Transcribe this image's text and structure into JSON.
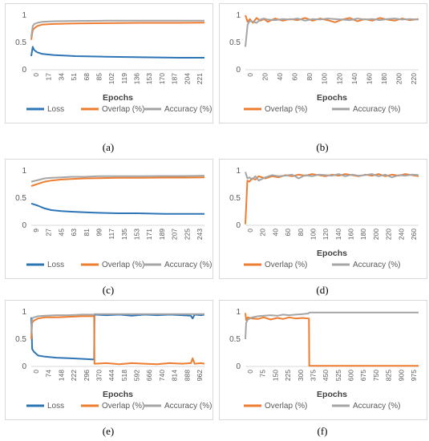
{
  "captions": [
    "(a)",
    "(b)",
    "(c)",
    "(d)",
    "(e)",
    "(f)"
  ],
  "colors": {
    "loss": "#2E75B6",
    "overlap": "#ED7D31",
    "accuracy": "#A5A5A5"
  },
  "chart_data": [
    {
      "type": "line",
      "panel": "a",
      "xlabel": "Epochs",
      "ylim": [
        0,
        1
      ],
      "yticks": [
        "0",
        "0.5",
        "1"
      ],
      "xticks": [
        "0",
        "17",
        "34",
        "51",
        "68",
        "85",
        "102",
        "119",
        "136",
        "153",
        "170",
        "187",
        "204",
        "221"
      ],
      "xmax": 235,
      "legend": [
        "Loss",
        "Overlap (%)",
        "Accuracy (%)"
      ],
      "series": [
        {
          "name": "Loss",
          "x": [
            0,
            2,
            4,
            8,
            15,
            30,
            60,
            100,
            150,
            200,
            235
          ],
          "values": [
            0.25,
            0.42,
            0.36,
            0.32,
            0.29,
            0.27,
            0.25,
            0.24,
            0.23,
            0.22,
            0.22
          ]
        },
        {
          "name": "Overlap (%)",
          "x": [
            0,
            2,
            4,
            8,
            15,
            30,
            60,
            100,
            150,
            200,
            235
          ],
          "values": [
            0.55,
            0.72,
            0.76,
            0.8,
            0.83,
            0.84,
            0.85,
            0.855,
            0.86,
            0.86,
            0.865
          ]
        },
        {
          "name": "Accuracy (%)",
          "x": [
            0,
            2,
            4,
            8,
            15,
            30,
            60,
            100,
            150,
            200,
            235
          ],
          "values": [
            0.6,
            0.8,
            0.84,
            0.86,
            0.88,
            0.89,
            0.895,
            0.9,
            0.9,
            0.9,
            0.9
          ]
        }
      ]
    },
    {
      "type": "line",
      "panel": "b",
      "xlabel": "Epochs",
      "ylim": [
        0,
        1
      ],
      "yticks": [
        "0",
        "0.5",
        "1"
      ],
      "xticks": [
        "0",
        "20",
        "40",
        "60",
        "80",
        "100",
        "120",
        "140",
        "160",
        "180",
        "200",
        "220"
      ],
      "xmax": 232,
      "legend": [
        "Overlap (%)",
        "Accuracy (%)"
      ],
      "series": [
        {
          "name": "Overlap (%)",
          "x": [
            0,
            3,
            6,
            10,
            15,
            20,
            25,
            30,
            40,
            50,
            60,
            70,
            80,
            90,
            100,
            110,
            120,
            130,
            140,
            150,
            160,
            170,
            180,
            190,
            200,
            210,
            220,
            232
          ],
          "values": [
            1,
            0.88,
            0.93,
            0.86,
            0.95,
            0.9,
            0.93,
            0.88,
            0.94,
            0.9,
            0.93,
            0.91,
            0.95,
            0.9,
            0.94,
            0.91,
            0.87,
            0.92,
            0.95,
            0.89,
            0.93,
            0.9,
            0.95,
            0.92,
            0.9,
            0.94,
            0.91,
            0.93
          ]
        },
        {
          "name": "Accuracy (%)",
          "x": [
            0,
            3,
            6,
            10,
            15,
            20,
            25,
            30,
            40,
            50,
            60,
            70,
            80,
            90,
            100,
            110,
            120,
            130,
            140,
            150,
            160,
            170,
            180,
            190,
            200,
            210,
            220,
            232
          ],
          "values": [
            0.42,
            0.83,
            0.9,
            0.88,
            0.86,
            0.92,
            0.94,
            0.92,
            0.91,
            0.93,
            0.92,
            0.94,
            0.9,
            0.93,
            0.92,
            0.94,
            0.93,
            0.92,
            0.91,
            0.94,
            0.92,
            0.93,
            0.91,
            0.93,
            0.94,
            0.92,
            0.93,
            0.92
          ]
        }
      ]
    },
    {
      "type": "line",
      "panel": "c",
      "xlabel": "",
      "ylim": [
        0,
        1
      ],
      "yticks": [
        "0",
        "0.5",
        "1"
      ],
      "xticks": [
        "9",
        "27",
        "45",
        "63",
        "81",
        "99",
        "117",
        "135",
        "153",
        "171",
        "189",
        "207",
        "225",
        "243"
      ],
      "xmin": 0,
      "xmax": 260,
      "legend": [
        "Loss",
        "Overlap (%)",
        "Accuracy (%)"
      ],
      "series": [
        {
          "name": "Loss",
          "x": [
            0,
            10,
            20,
            30,
            45,
            60,
            80,
            100,
            130,
            160,
            200,
            230,
            260
          ],
          "values": [
            0.4,
            0.36,
            0.31,
            0.28,
            0.26,
            0.25,
            0.24,
            0.23,
            0.22,
            0.22,
            0.21,
            0.21,
            0.21
          ]
        },
        {
          "name": "Overlap (%)",
          "x": [
            0,
            10,
            20,
            30,
            45,
            60,
            80,
            100,
            130,
            160,
            200,
            230,
            260
          ],
          "values": [
            0.72,
            0.76,
            0.8,
            0.82,
            0.84,
            0.85,
            0.86,
            0.865,
            0.87,
            0.87,
            0.875,
            0.875,
            0.88
          ]
        },
        {
          "name": "Accuracy (%)",
          "x": [
            0,
            10,
            20,
            30,
            45,
            60,
            80,
            100,
            130,
            160,
            200,
            230,
            260
          ],
          "values": [
            0.8,
            0.83,
            0.86,
            0.87,
            0.88,
            0.89,
            0.89,
            0.9,
            0.9,
            0.9,
            0.905,
            0.905,
            0.91
          ]
        }
      ]
    },
    {
      "type": "line",
      "panel": "d",
      "xlabel": "Epochs",
      "ylim": [
        0,
        1
      ],
      "yticks": [
        "0",
        "0.5",
        "1"
      ],
      "xticks": [
        "0",
        "20",
        "40",
        "60",
        "80",
        "100",
        "120",
        "140",
        "160",
        "180",
        "200",
        "220",
        "240",
        "260"
      ],
      "xmax": 260,
      "legend": [
        "Overlap (%)",
        "Accuracy (%)"
      ],
      "series": [
        {
          "name": "Overlap (%)",
          "x": [
            0,
            3,
            6,
            10,
            15,
            20,
            30,
            40,
            50,
            60,
            70,
            80,
            90,
            100,
            110,
            120,
            130,
            140,
            150,
            160,
            170,
            180,
            190,
            200,
            210,
            220,
            230,
            240,
            250,
            260
          ],
          "values": [
            0.02,
            0.82,
            0.8,
            0.86,
            0.84,
            0.9,
            0.86,
            0.9,
            0.88,
            0.92,
            0.9,
            0.93,
            0.91,
            0.94,
            0.92,
            0.9,
            0.93,
            0.91,
            0.94,
            0.92,
            0.9,
            0.93,
            0.91,
            0.94,
            0.9,
            0.93,
            0.91,
            0.94,
            0.92,
            0.9
          ]
        },
        {
          "name": "Accuracy (%)",
          "x": [
            0,
            3,
            6,
            10,
            15,
            20,
            30,
            40,
            50,
            60,
            70,
            80,
            90,
            100,
            110,
            120,
            130,
            140,
            150,
            160,
            170,
            180,
            190,
            200,
            210,
            220,
            230,
            240,
            250,
            260
          ],
          "values": [
            0.98,
            0.86,
            0.88,
            0.84,
            0.9,
            0.82,
            0.88,
            0.92,
            0.9,
            0.91,
            0.93,
            0.86,
            0.92,
            0.9,
            0.93,
            0.92,
            0.91,
            0.94,
            0.9,
            0.93,
            0.91,
            0.92,
            0.94,
            0.9,
            0.93,
            0.88,
            0.92,
            0.91,
            0.93,
            0.92
          ]
        }
      ]
    },
    {
      "type": "line",
      "panel": "e",
      "xlabel": "Epochs",
      "ylim": [
        0,
        1
      ],
      "yticks": [
        "0",
        "0.5",
        "1"
      ],
      "xticks": [
        "0",
        "74",
        "148",
        "222",
        "296",
        "370",
        "444",
        "518",
        "592",
        "666",
        "740",
        "814",
        "888",
        "962"
      ],
      "xmax": 1020,
      "legend": [
        "Loss",
        "Overlap (%)",
        "Accuracy (%)"
      ],
      "series": [
        {
          "name": "Loss",
          "x": [
            0,
            5,
            15,
            40,
            80,
            148,
            222,
            296,
            360,
            370,
            372,
            444,
            518,
            592,
            666,
            740,
            814,
            888,
            940,
            950,
            962,
            1000,
            1020
          ],
          "values": [
            0.9,
            0.32,
            0.27,
            0.2,
            0.18,
            0.16,
            0.15,
            0.14,
            0.13,
            0.13,
            0.95,
            0.94,
            0.95,
            0.93,
            0.95,
            0.94,
            0.95,
            0.94,
            0.93,
            0.88,
            0.95,
            0.94,
            0.95
          ]
        },
        {
          "name": "Overlap (%)",
          "x": [
            0,
            5,
            15,
            40,
            80,
            148,
            222,
            296,
            360,
            370,
            372,
            444,
            518,
            592,
            666,
            740,
            814,
            888,
            940,
            950,
            962,
            1000,
            1020
          ],
          "values": [
            0.5,
            0.8,
            0.84,
            0.88,
            0.9,
            0.9,
            0.91,
            0.92,
            0.92,
            0.92,
            0.05,
            0.06,
            0.04,
            0.06,
            0.05,
            0.04,
            0.06,
            0.05,
            0.06,
            0.15,
            0.05,
            0.06,
            0.05
          ]
        },
        {
          "name": "Accuracy (%)",
          "x": [
            0,
            5,
            15,
            40,
            80,
            148,
            222,
            296,
            360,
            370,
            372,
            444,
            518,
            592,
            666,
            740,
            814,
            888,
            940,
            950,
            962,
            1000,
            1020
          ],
          "values": [
            0.6,
            0.88,
            0.9,
            0.92,
            0.93,
            0.94,
            0.94,
            0.95,
            0.95,
            0.95,
            0.96,
            0.96,
            0.96,
            0.96,
            0.96,
            0.96,
            0.96,
            0.96,
            0.96,
            0.96,
            0.96,
            0.96,
            0.96
          ]
        }
      ]
    },
    {
      "type": "line",
      "panel": "f",
      "xlabel": "Epochs",
      "ylim": [
        0,
        1
      ],
      "yticks": [
        "0",
        "0.5",
        "1"
      ],
      "xticks": [
        "0",
        "75",
        "150",
        "225",
        "300",
        "375",
        "450",
        "525",
        "600",
        "675",
        "750",
        "825",
        "900",
        "975"
      ],
      "xmax": 1030,
      "legend": [
        "Overlap (%)",
        "Accuracy (%)"
      ],
      "series": [
        {
          "name": "Overlap (%)",
          "x": [
            0,
            5,
            15,
            40,
            75,
            110,
            150,
            190,
            225,
            260,
            300,
            340,
            375,
            378,
            380,
            450,
            600,
            750,
            900,
            1030
          ],
          "values": [
            0.98,
            0.85,
            0.9,
            0.88,
            0.87,
            0.9,
            0.86,
            0.89,
            0.87,
            0.9,
            0.88,
            0.89,
            0.88,
            0.88,
            0.01,
            0.01,
            0.01,
            0.01,
            0.01,
            0.01
          ]
        },
        {
          "name": "Accuracy (%)",
          "x": [
            0,
            5,
            15,
            40,
            75,
            110,
            150,
            190,
            225,
            260,
            300,
            340,
            375,
            378,
            380,
            450,
            600,
            750,
            900,
            1030
          ],
          "values": [
            0.5,
            0.8,
            0.86,
            0.9,
            0.92,
            0.93,
            0.94,
            0.93,
            0.95,
            0.94,
            0.95,
            0.96,
            0.97,
            0.98,
            0.99,
            0.99,
            0.99,
            0.99,
            0.99,
            0.99
          ]
        }
      ]
    }
  ]
}
